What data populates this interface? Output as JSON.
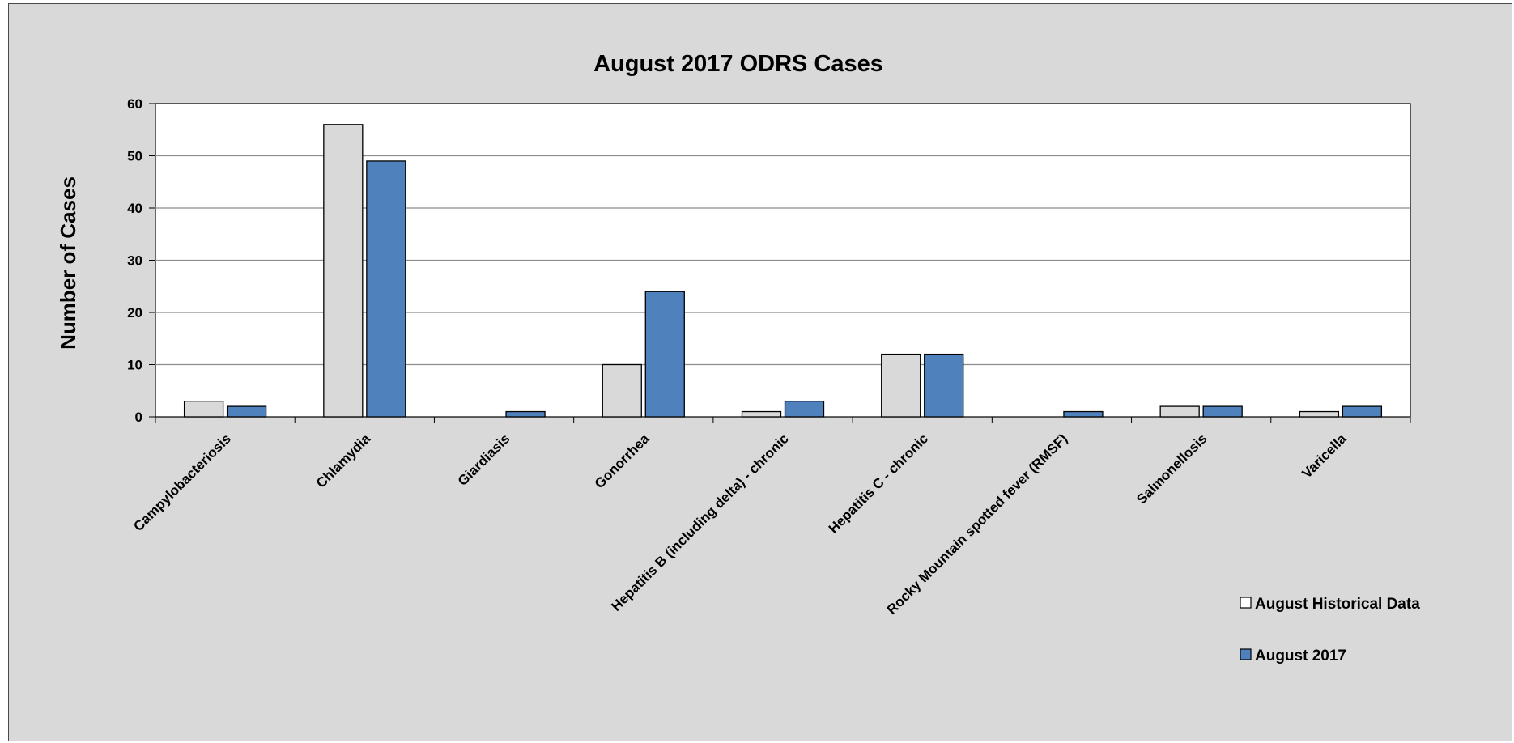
{
  "chart_data": {
    "type": "bar",
    "title": "August 2017 ODRS Cases",
    "ylabel": "Number of Cases",
    "xlabel": "",
    "ylim": [
      0,
      60
    ],
    "yticks": [
      0,
      10,
      20,
      30,
      40,
      50,
      60
    ],
    "grid": true,
    "legend_position": "bottom-right",
    "categories": [
      "Campylobacteriosis",
      "Chlamydia",
      "Giardiasis",
      "Gonorrhea",
      "Hepatitis B (including delta) - chronic",
      "Hepatitis C - chronic",
      "Rocky Mountain spotted fever (RMSF)",
      "Salmonellosis",
      "Varicella"
    ],
    "series": [
      {
        "name": "August Historical Data",
        "color": "#d9d9d9",
        "values": [
          3,
          56,
          0,
          10,
          1,
          12,
          0,
          2,
          1
        ]
      },
      {
        "name": "August 2017",
        "color": "#4f81bd",
        "values": [
          2,
          49,
          1,
          24,
          3,
          12,
          1,
          2,
          2
        ]
      }
    ]
  }
}
